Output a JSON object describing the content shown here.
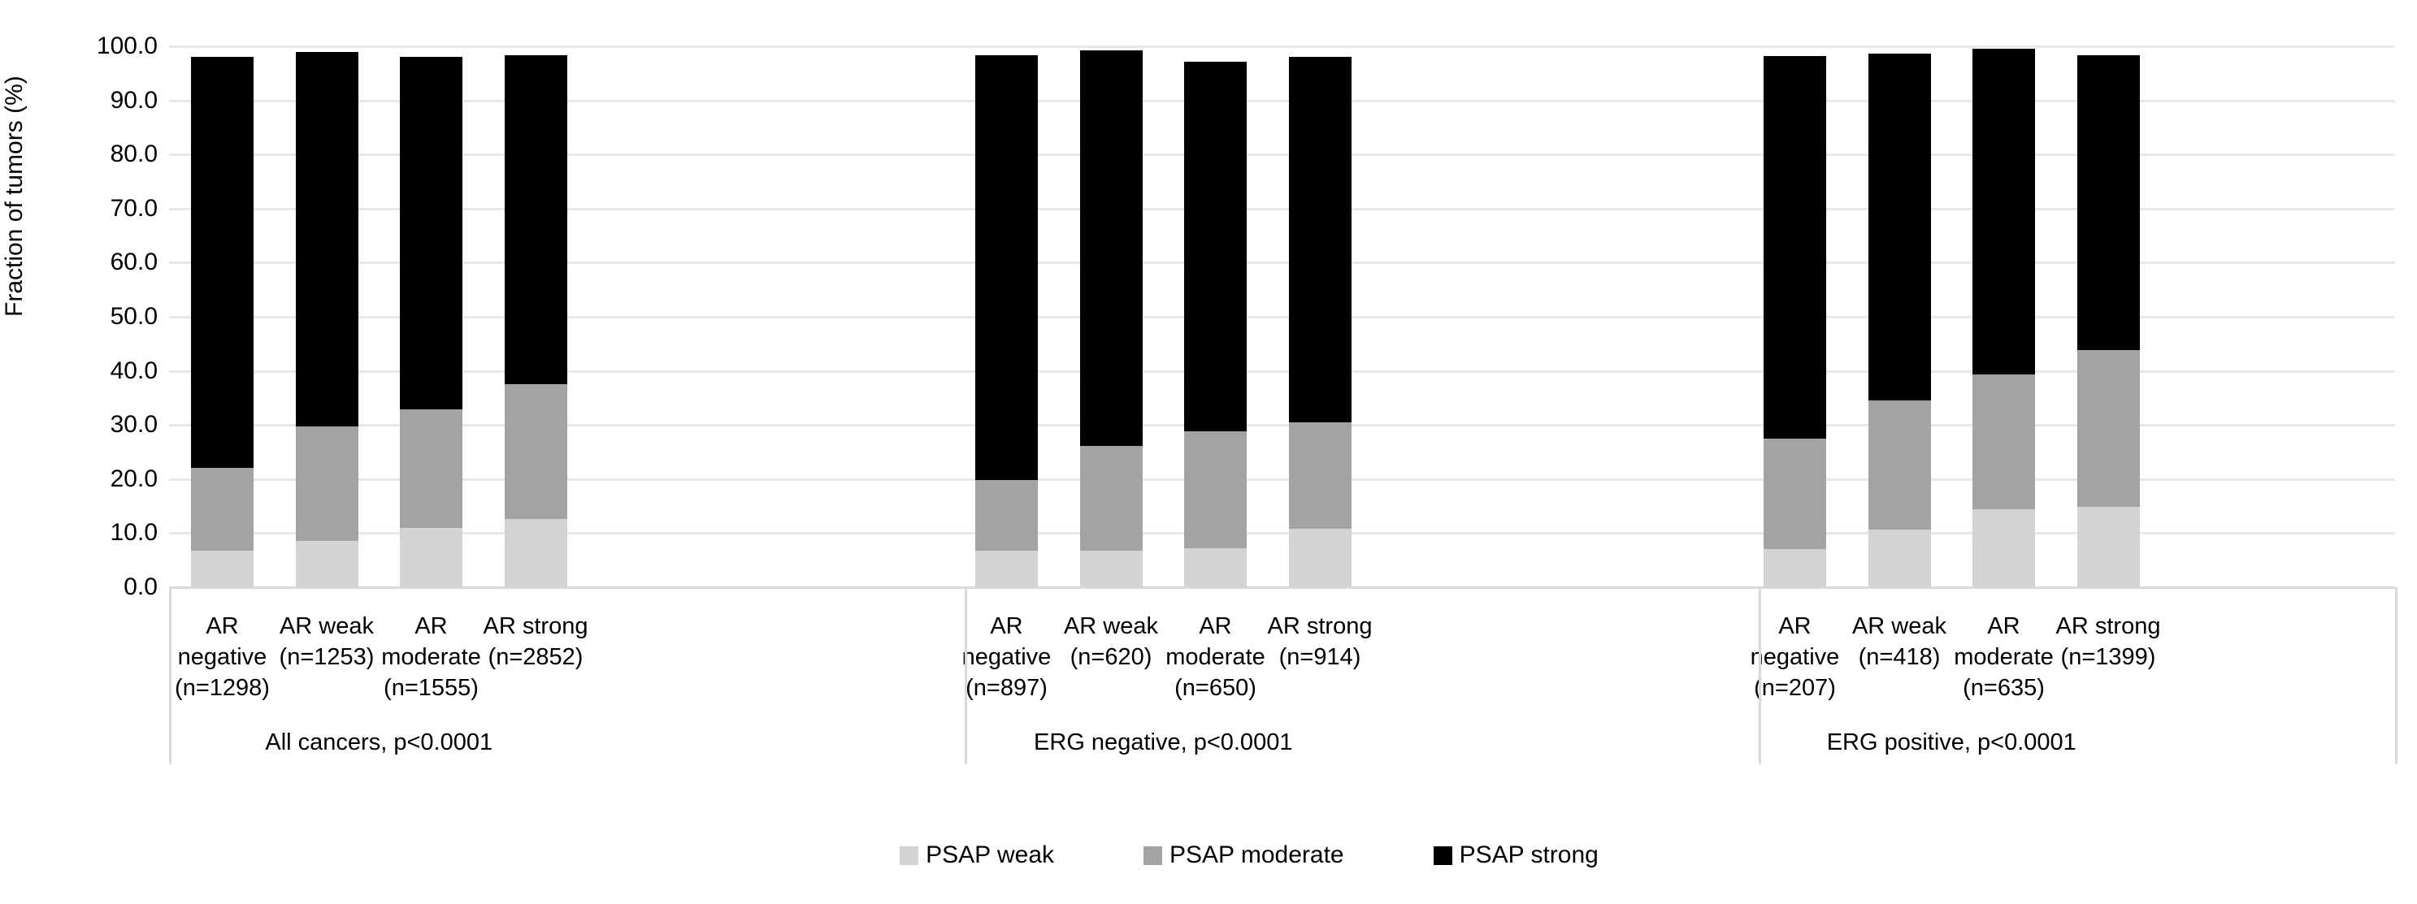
{
  "chart_data": {
    "type": "bar",
    "stacked": true,
    "ylabel": "Fraction of tumors (%)",
    "ylim": [
      0,
      100
    ],
    "ytick_step": 10,
    "ytick_labels": [
      "0.0",
      "10.0",
      "20.0",
      "30.0",
      "40.0",
      "50.0",
      "60.0",
      "70.0",
      "80.0",
      "90.0",
      "100.0"
    ],
    "grid": true,
    "legend_position": "bottom",
    "series": [
      {
        "name": "PSAP weak",
        "color": "#d3d3d3"
      },
      {
        "name": "PSAP moderate",
        "color": "#a3a3a3"
      },
      {
        "name": "PSAP strong",
        "color": "#000000"
      }
    ],
    "groups": [
      {
        "label": "All cancers, p<0.0001",
        "categories": [
          {
            "label": "AR negative (n=1298)",
            "label_lines": [
              "AR",
              "negative",
              "(n=1298)"
            ],
            "values": [
              6.7,
              15.3,
              76.1
            ]
          },
          {
            "label": "AR weak (n=1253)",
            "label_lines": [
              "AR weak",
              "(n=1253)"
            ],
            "values": [
              8.5,
              21.3,
              69.1
            ]
          },
          {
            "label": "AR moderate (n=1555)",
            "label_lines": [
              "AR",
              "moderate",
              "(n=1555)"
            ],
            "values": [
              10.9,
              22.0,
              65.2
            ]
          },
          {
            "label": "AR strong (n=2852)",
            "label_lines": [
              "AR strong",
              "(n=2852)"
            ],
            "values": [
              12.6,
              25.0,
              60.7
            ]
          }
        ]
      },
      {
        "label": "ERG negative, p<0.0001",
        "categories": [
          {
            "label": "AR negative (n=897)",
            "label_lines": [
              "AR",
              "negative",
              "(n=897)"
            ],
            "values": [
              6.7,
              13.1,
              78.5
            ]
          },
          {
            "label": "AR weak (n=620)",
            "label_lines": [
              "AR weak",
              "(n=620)"
            ],
            "values": [
              6.8,
              19.4,
              73.1
            ]
          },
          {
            "label": "AR moderate (n=650)",
            "label_lines": [
              "AR",
              "moderate",
              "(n=650)"
            ],
            "values": [
              7.2,
              21.7,
              68.3
            ]
          },
          {
            "label": "AR strong (n=914)",
            "label_lines": [
              "AR strong",
              "(n=914)"
            ],
            "values": [
              10.8,
              19.7,
              67.6
            ]
          }
        ]
      },
      {
        "label": "ERG positive, p<0.0001",
        "categories": [
          {
            "label": "AR negative (n=207)",
            "label_lines": [
              "AR",
              "negative",
              "(n=207)"
            ],
            "values": [
              7.0,
              20.5,
              70.7
            ]
          },
          {
            "label": "AR weak (n=418)",
            "label_lines": [
              "AR weak",
              "(n=418)"
            ],
            "values": [
              10.6,
              24.0,
              64.0
            ]
          },
          {
            "label": "AR moderate (n=635)",
            "label_lines": [
              "AR",
              "moderate",
              "(n=635)"
            ],
            "values": [
              14.4,
              25.0,
              60.1
            ]
          },
          {
            "label": "AR strong (n=1399)",
            "label_lines": [
              "AR strong",
              "(n=1399)"
            ],
            "values": [
              14.8,
              29.1,
              54.5
            ]
          }
        ]
      }
    ],
    "colors": {
      "gridline": "#e8e8e8",
      "axis_line": "#d9d9d9",
      "text": "#000000",
      "background": "#ffffff"
    }
  }
}
